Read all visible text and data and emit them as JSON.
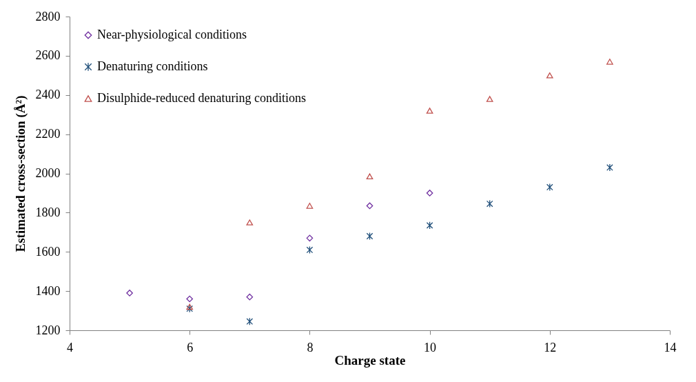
{
  "chart_data": {
    "type": "scatter",
    "xlabel": "Charge state",
    "ylabel": "Estimated cross-section (Å²)",
    "xlim": [
      4,
      14
    ],
    "xticks": [
      4,
      6,
      8,
      10,
      12,
      14
    ],
    "ylim": [
      1200,
      2800
    ],
    "yticks": [
      1200,
      1400,
      1600,
      1800,
      2000,
      2200,
      2400,
      2600,
      2800
    ],
    "grid": false,
    "legend": "top left",
    "series": [
      {
        "name": "Near-physiological  conditions",
        "color": "#7030a0",
        "marker": "diamond",
        "x": [
          5,
          6,
          7,
          8,
          9,
          10
        ],
        "values": [
          1390,
          1360,
          1370,
          1670,
          1835,
          1900
        ]
      },
      {
        "name": "Denaturing conditions",
        "color": "#1f4e79",
        "marker": "cross",
        "x": [
          6,
          7,
          8,
          9,
          10,
          11,
          12,
          13
        ],
        "values": [
          1310,
          1245,
          1610,
          1680,
          1735,
          1845,
          1930,
          2030
        ]
      },
      {
        "name": "Disulphide-reduced  denaturing conditions",
        "color": "#c0504d",
        "marker": "triangle",
        "x": [
          6,
          7,
          8,
          9,
          10,
          11,
          12,
          13
        ],
        "values": [
          1320,
          1750,
          1835,
          1985,
          2320,
          2380,
          2500,
          2570
        ]
      }
    ]
  }
}
